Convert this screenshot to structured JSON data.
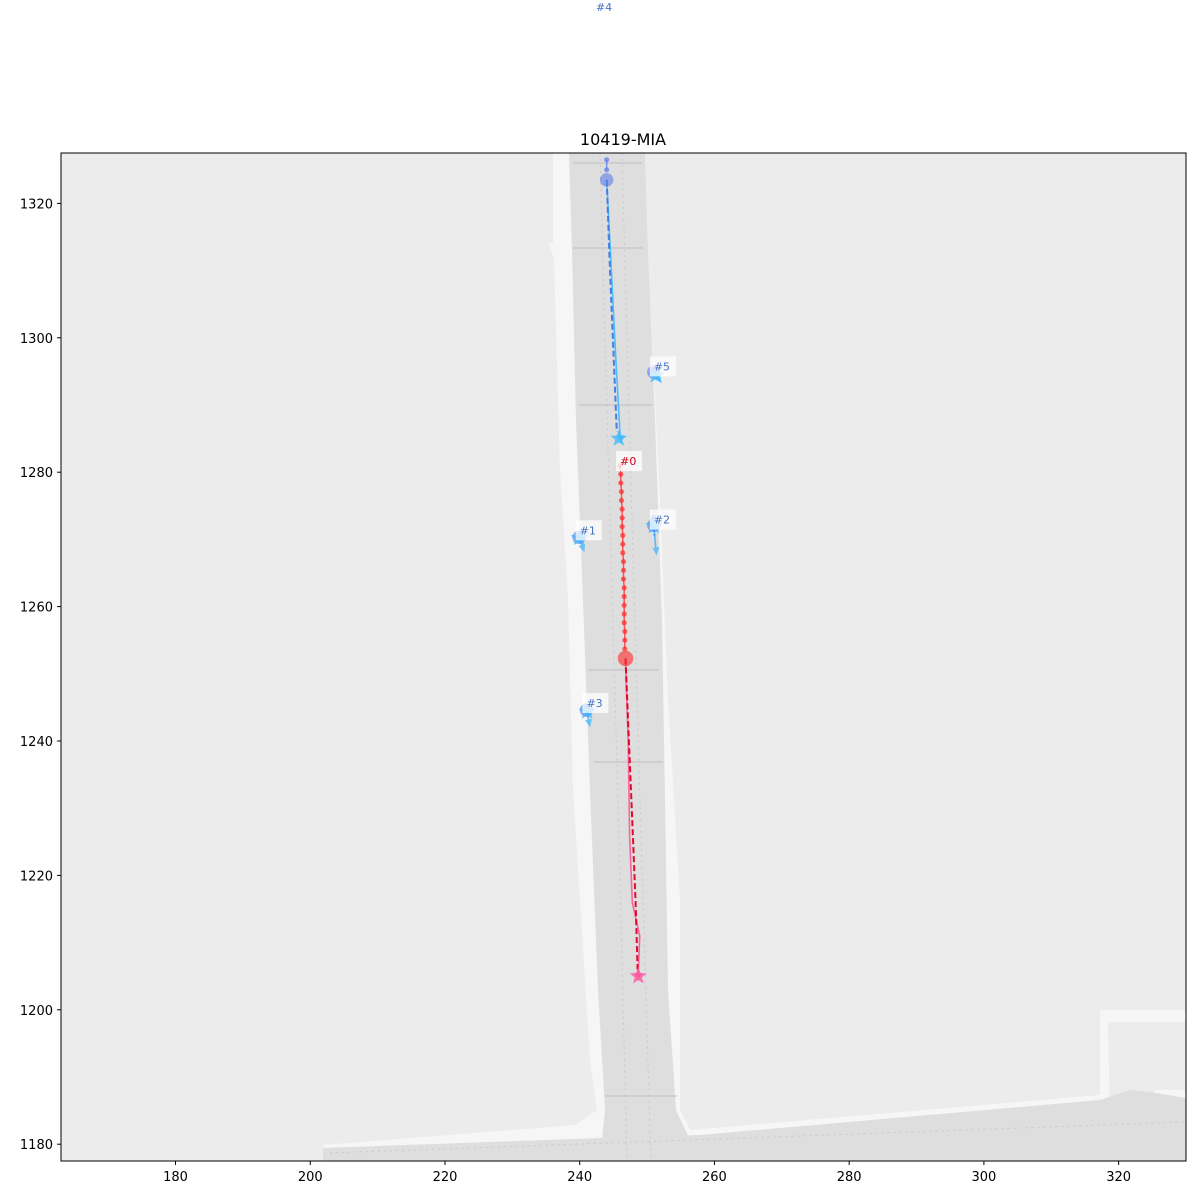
{
  "chart_data": {
    "type": "scatter",
    "title": "10419-MIA",
    "xlabel": "",
    "ylabel": "",
    "xlim": [
      163,
      330
    ],
    "ylim": [
      1177.5,
      1327.5
    ],
    "x_ticks": [
      180,
      200,
      220,
      240,
      260,
      280,
      300,
      320
    ],
    "y_ticks": [
      1180,
      1200,
      1220,
      1240,
      1260,
      1280,
      1300,
      1320
    ],
    "grid": false,
    "colors": {
      "background": "#ececec",
      "road": "#dcdcdc",
      "focal_history": "#ff2a2a",
      "focal_future": "#e0001a",
      "focal_pred": "#ff4f9a",
      "neighbor_history": "#5d7ee8",
      "neighbor_future": "#3d78e6",
      "neighbor_pred": "#37b7ff"
    },
    "outside_label": {
      "text": "#4",
      "x": 244.0,
      "y_above": 1343.5
    },
    "agents": [
      {
        "id": "#0",
        "role": "focal",
        "label_pos": [
          246.0,
          1281.5
        ],
        "history": [
          [
            246.0,
            1281.0
          ],
          [
            246.1,
            1279.7
          ],
          [
            246.1,
            1278.4
          ],
          [
            246.2,
            1277.1
          ],
          [
            246.2,
            1275.8
          ],
          [
            246.3,
            1274.5
          ],
          [
            246.3,
            1273.2
          ],
          [
            246.3,
            1271.9
          ],
          [
            246.4,
            1270.6
          ],
          [
            246.4,
            1269.3
          ],
          [
            246.4,
            1268.0
          ],
          [
            246.5,
            1266.7
          ],
          [
            246.5,
            1265.4
          ],
          [
            246.5,
            1264.1
          ],
          [
            246.6,
            1262.8
          ],
          [
            246.6,
            1261.5
          ],
          [
            246.6,
            1260.2
          ],
          [
            246.6,
            1258.9
          ],
          [
            246.6,
            1257.6
          ],
          [
            246.7,
            1256.3
          ],
          [
            246.7,
            1255.0
          ],
          [
            246.7,
            1253.7
          ]
        ],
        "current": [
          246.8,
          1252.3
        ],
        "future": [
          [
            246.8,
            1252.3
          ],
          [
            247.3,
            1240.0
          ],
          [
            247.8,
            1228.0
          ],
          [
            248.3,
            1216.0
          ],
          [
            248.6,
            1206.0
          ]
        ],
        "prediction": [
          [
            246.8,
            1252.0
          ],
          [
            247.2,
            1240.0
          ],
          [
            247.4,
            1226.0
          ],
          [
            247.8,
            1216.0
          ],
          [
            248.9,
            1211.0
          ],
          [
            248.7,
            1205.5
          ]
        ],
        "end": [
          248.7,
          1205.0
        ]
      },
      {
        "id": "#1",
        "role": "neighbor",
        "label_pos": [
          240.0,
          1271.2
        ],
        "history": [
          [
            239.9,
            1270.6
          ],
          [
            239.9,
            1270.4
          ]
        ],
        "current": [
          239.9,
          1270.3
        ],
        "future": [
          [
            239.9,
            1270.3
          ],
          [
            240.1,
            1269.9
          ]
        ],
        "prediction": [
          [
            239.9,
            1270.3
          ],
          [
            240.3,
            1269.2
          ]
        ],
        "end": [
          239.9,
          1270.2
        ]
      },
      {
        "id": "#2",
        "role": "neighbor",
        "label_pos": [
          251.0,
          1272.8
        ],
        "history": [
          [
            251.0,
            1273.3
          ],
          [
            251.0,
            1273.0
          ]
        ],
        "current": [
          251.0,
          1272.1
        ],
        "future": [
          [
            251.0,
            1272.1
          ],
          [
            251.1,
            1270.6
          ]
        ],
        "prediction": [
          [
            251.0,
            1272.0
          ],
          [
            251.3,
            1268.8
          ]
        ],
        "end": [
          251.0,
          1272.0
        ]
      },
      {
        "id": "#3",
        "role": "neighbor",
        "label_pos": [
          241.0,
          1245.5
        ],
        "history": [
          [
            241.0,
            1245.1
          ],
          [
            241.0,
            1244.9
          ]
        ],
        "current": [
          241.0,
          1244.6
        ],
        "future": [
          [
            241.0,
            1244.6
          ],
          [
            241.1,
            1244.0
          ]
        ],
        "prediction": [
          [
            241.0,
            1244.6
          ],
          [
            241.3,
            1243.2
          ]
        ],
        "end": [
          241.1,
          1244.4
        ]
      },
      {
        "id": "#4",
        "role": "neighbor",
        "label_pos": [
          244.0,
          1343.5
        ],
        "history": [
          [
            244.0,
            1326.5
          ],
          [
            244.0,
            1325.0
          ]
        ],
        "current": [
          244.0,
          1323.5
        ],
        "future": [
          [
            244.0,
            1323.5
          ],
          [
            244.5,
            1310.0
          ],
          [
            245.0,
            1298.0
          ],
          [
            245.5,
            1286.0
          ]
        ],
        "prediction": [
          [
            244.0,
            1323.5
          ],
          [
            244.7,
            1310.0
          ],
          [
            245.3,
            1298.0
          ],
          [
            246.0,
            1285.5
          ]
        ],
        "end": [
          245.8,
          1285.0
        ]
      },
      {
        "id": "#5",
        "role": "neighbor",
        "label_pos": [
          251.0,
          1295.6
        ],
        "history": [
          [
            251.0,
            1295.2
          ]
        ],
        "current": [
          251.0,
          1294.9
        ],
        "future": [
          [
            251.0,
            1294.9
          ],
          [
            251.3,
            1294.5
          ]
        ],
        "prediction": [
          [
            251.0,
            1294.9
          ],
          [
            251.5,
            1294.2
          ]
        ],
        "end": [
          251.3,
          1294.4
        ]
      }
    ]
  }
}
